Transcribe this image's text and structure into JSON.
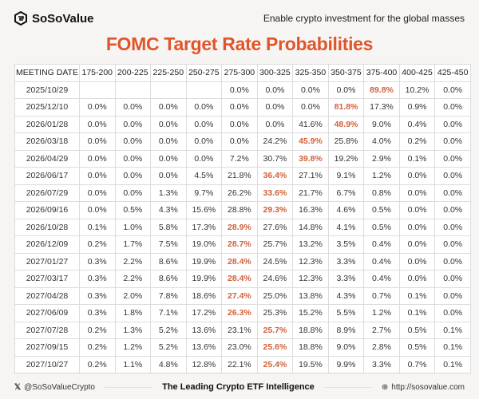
{
  "header": {
    "brand": "SoSoValue",
    "tagline": "Enable crypto investment for the global masses"
  },
  "title": "FOMC Target Rate Probabilities",
  "colors": {
    "accent": "#e0552a",
    "highlight": "#d0613a"
  },
  "table": {
    "columns": [
      "MEETING DATE",
      "175-200",
      "200-225",
      "225-250",
      "250-275",
      "275-300",
      "300-325",
      "325-350",
      "350-375",
      "375-400",
      "400-425",
      "425-450"
    ],
    "rows": [
      {
        "date": "2025/10/29",
        "cells": [
          "",
          "",
          "",
          "",
          "0.0%",
          "0.0%",
          "0.0%",
          "0.0%",
          "89.8%",
          "10.2%",
          "0.0%"
        ],
        "hi": 8
      },
      {
        "date": "2025/12/10",
        "cells": [
          "0.0%",
          "0.0%",
          "0.0%",
          "0.0%",
          "0.0%",
          "0.0%",
          "0.0%",
          "81.8%",
          "17.3%",
          "0.9%",
          "0.0%"
        ],
        "hi": 7
      },
      {
        "date": "2026/01/28",
        "cells": [
          "0.0%",
          "0.0%",
          "0.0%",
          "0.0%",
          "0.0%",
          "0.0%",
          "41.6%",
          "48.9%",
          "9.0%",
          "0.4%",
          "0.0%"
        ],
        "hi": 7
      },
      {
        "date": "2026/03/18",
        "cells": [
          "0.0%",
          "0.0%",
          "0.0%",
          "0.0%",
          "0.0%",
          "24.2%",
          "45.9%",
          "25.8%",
          "4.0%",
          "0.2%",
          "0.0%"
        ],
        "hi": 6
      },
      {
        "date": "2026/04/29",
        "cells": [
          "0.0%",
          "0.0%",
          "0.0%",
          "0.0%",
          "7.2%",
          "30.7%",
          "39.8%",
          "19.2%",
          "2.9%",
          "0.1%",
          "0.0%"
        ],
        "hi": 6
      },
      {
        "date": "2026/06/17",
        "cells": [
          "0.0%",
          "0.0%",
          "0.0%",
          "4.5%",
          "21.8%",
          "36.4%",
          "27.1%",
          "9.1%",
          "1.2%",
          "0.0%",
          "0.0%"
        ],
        "hi": 5
      },
      {
        "date": "2026/07/29",
        "cells": [
          "0.0%",
          "0.0%",
          "1.3%",
          "9.7%",
          "26.2%",
          "33.6%",
          "21.7%",
          "6.7%",
          "0.8%",
          "0.0%",
          "0.0%"
        ],
        "hi": 5
      },
      {
        "date": "2026/09/16",
        "cells": [
          "0.0%",
          "0.5%",
          "4.3%",
          "15.6%",
          "28.8%",
          "29.3%",
          "16.3%",
          "4.6%",
          "0.5%",
          "0.0%",
          "0.0%"
        ],
        "hi": 5
      },
      {
        "date": "2026/10/28",
        "cells": [
          "0.1%",
          "1.0%",
          "5.8%",
          "17.3%",
          "28.9%",
          "27.6%",
          "14.8%",
          "4.1%",
          "0.5%",
          "0.0%",
          "0.0%"
        ],
        "hi": 4
      },
      {
        "date": "2026/12/09",
        "cells": [
          "0.2%",
          "1.7%",
          "7.5%",
          "19.0%",
          "28.7%",
          "25.7%",
          "13.2%",
          "3.5%",
          "0.4%",
          "0.0%",
          "0.0%"
        ],
        "hi": 4
      },
      {
        "date": "2027/01/27",
        "cells": [
          "0.3%",
          "2.2%",
          "8.6%",
          "19.9%",
          "28.4%",
          "24.5%",
          "12.3%",
          "3.3%",
          "0.4%",
          "0.0%",
          "0.0%"
        ],
        "hi": 4
      },
      {
        "date": "2027/03/17",
        "cells": [
          "0.3%",
          "2.2%",
          "8.6%",
          "19.9%",
          "28.4%",
          "24.6%",
          "12.3%",
          "3.3%",
          "0.4%",
          "0.0%",
          "0.0%"
        ],
        "hi": 4
      },
      {
        "date": "2027/04/28",
        "cells": [
          "0.3%",
          "2.0%",
          "7.8%",
          "18.6%",
          "27.4%",
          "25.0%",
          "13.8%",
          "4.3%",
          "0.7%",
          "0.1%",
          "0.0%"
        ],
        "hi": 4
      },
      {
        "date": "2027/06/09",
        "cells": [
          "0.3%",
          "1.8%",
          "7.1%",
          "17.2%",
          "26.3%",
          "25.3%",
          "15.2%",
          "5.5%",
          "1.2%",
          "0.1%",
          "0.0%"
        ],
        "hi": 4
      },
      {
        "date": "2027/07/28",
        "cells": [
          "0.2%",
          "1.3%",
          "5.2%",
          "13.6%",
          "23.1%",
          "25.7%",
          "18.8%",
          "8.9%",
          "2.7%",
          "0.5%",
          "0.1%"
        ],
        "hi": 5
      },
      {
        "date": "2027/09/15",
        "cells": [
          "0.2%",
          "1.2%",
          "5.2%",
          "13.6%",
          "23.0%",
          "25.6%",
          "18.8%",
          "9.0%",
          "2.8%",
          "0.5%",
          "0.1%"
        ],
        "hi": 5
      },
      {
        "date": "2027/10/27",
        "cells": [
          "0.2%",
          "1.1%",
          "4.8%",
          "12.8%",
          "22.1%",
          "25.4%",
          "19.5%",
          "9.9%",
          "3.3%",
          "0.7%",
          "0.1%"
        ],
        "hi": 5
      }
    ]
  },
  "footer": {
    "twitter": "@SoSoValueCrypto",
    "slogan": "The Leading Crypto ETF Intelligence",
    "website": "http://sosovalue.com"
  }
}
